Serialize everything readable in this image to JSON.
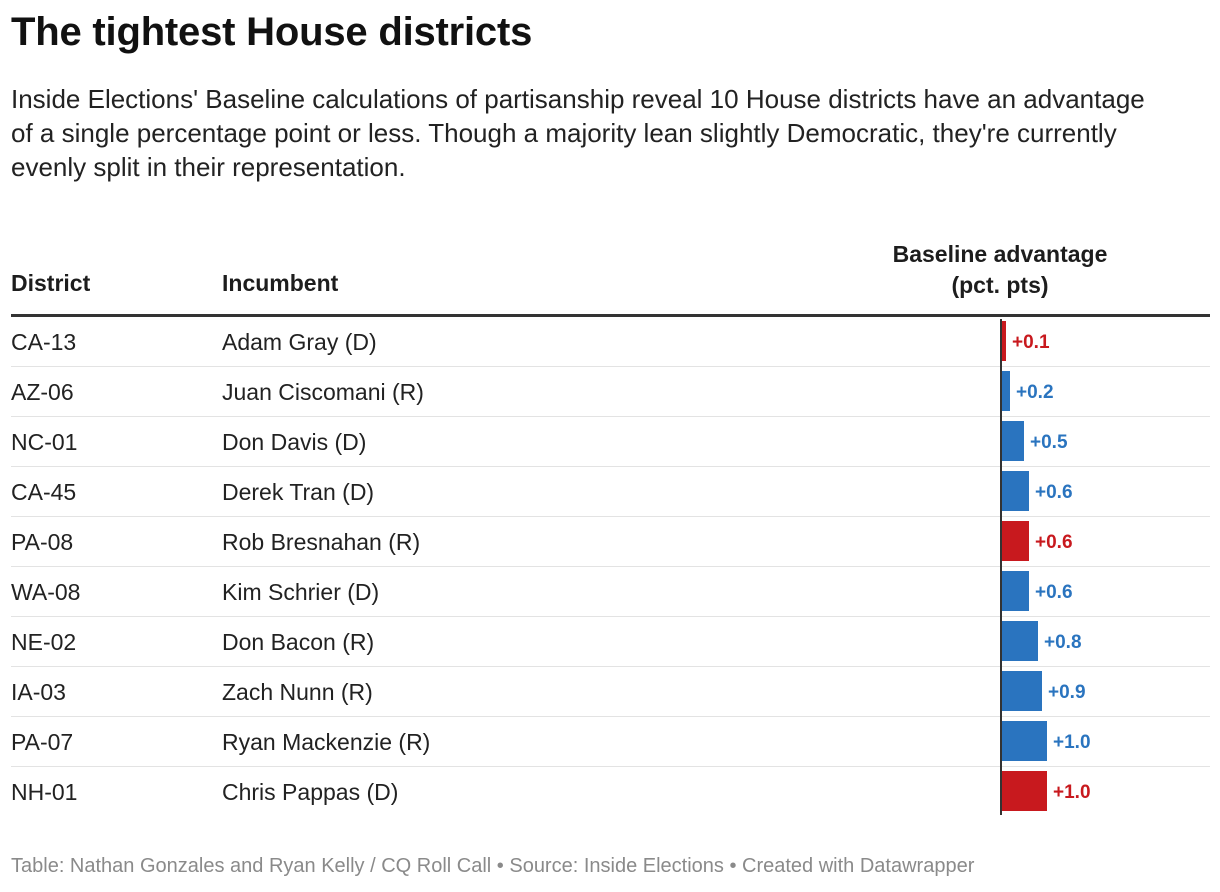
{
  "title": "The tightest House districts",
  "subtitle": "Inside Elections' Baseline calculations of partisanship reveal 10 House districts have an advantage of a single percentage point or less. Though a majority lean slightly Democratic, they're currently evenly split in their representation.",
  "headers": {
    "district": "District",
    "incumbent": "Incumbent",
    "baseline_line1": "Baseline advantage",
    "baseline_line2": "(pct. pts)"
  },
  "colors": {
    "dem": "#2a74bf",
    "rep": "#c8191e"
  },
  "chart_data": {
    "type": "table",
    "columns": [
      "District",
      "Incumbent",
      "Baseline advantage (pct. pts)"
    ],
    "rows": [
      {
        "district": "CA-13",
        "incumbent": "Adam Gray (D)",
        "value": 0.1,
        "label": "+0.1",
        "lean": "R"
      },
      {
        "district": "AZ-06",
        "incumbent": "Juan Ciscomani (R)",
        "value": 0.2,
        "label": "+0.2",
        "lean": "D"
      },
      {
        "district": "NC-01",
        "incumbent": "Don Davis (D)",
        "value": 0.5,
        "label": "+0.5",
        "lean": "D"
      },
      {
        "district": "CA-45",
        "incumbent": "Derek Tran (D)",
        "value": 0.6,
        "label": "+0.6",
        "lean": "D"
      },
      {
        "district": "PA-08",
        "incumbent": "Rob Bresnahan (R)",
        "value": 0.6,
        "label": "+0.6",
        "lean": "R"
      },
      {
        "district": "WA-08",
        "incumbent": "Kim Schrier (D)",
        "value": 0.6,
        "label": "+0.6",
        "lean": "D"
      },
      {
        "district": "NE-02",
        "incumbent": "Don Bacon (R)",
        "value": 0.8,
        "label": "+0.8",
        "lean": "D"
      },
      {
        "district": "IA-03",
        "incumbent": "Zach Nunn (R)",
        "value": 0.9,
        "label": "+0.9",
        "lean": "D"
      },
      {
        "district": "PA-07",
        "incumbent": "Ryan Mackenzie (R)",
        "value": 1.0,
        "label": "+1.0",
        "lean": "D"
      },
      {
        "district": "NH-01",
        "incumbent": "Chris Pappas (D)",
        "value": 1.0,
        "label": "+1.0",
        "lean": "R"
      }
    ],
    "xlim": [
      0,
      1.0
    ]
  },
  "footer": "Table: Nathan Gonzales and Ryan Kelly / CQ Roll Call • Source: Inside Elections • Created with Datawrapper"
}
